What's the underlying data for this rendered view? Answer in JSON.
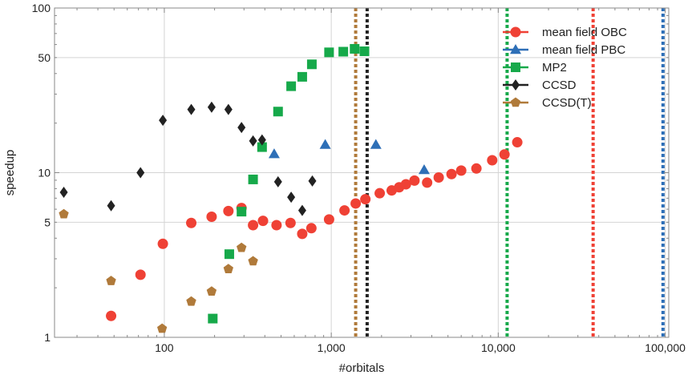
{
  "chart_data": {
    "type": "scatter",
    "xlabel": "#orbitals",
    "ylabel": "speedup",
    "xscale": "log",
    "yscale": "log",
    "xlim": [
      22,
      105000
    ],
    "ylim": [
      1,
      100
    ],
    "grid": true,
    "legend_position": "top-right",
    "x_ticks": [
      {
        "value": 100,
        "label": "100"
      },
      {
        "value": 1000,
        "label": "1,000"
      },
      {
        "value": 10000,
        "label": "10,000"
      },
      {
        "value": 100000,
        "label": "100,000"
      }
    ],
    "y_ticks": [
      {
        "value": 1,
        "label": "1"
      },
      {
        "value": 5,
        "label": "5"
      },
      {
        "value": 10,
        "label": "10"
      },
      {
        "value": 50,
        "label": "50"
      },
      {
        "value": 100,
        "label": "100"
      }
    ],
    "series": [
      {
        "name": "mean field OBC",
        "color": "#ef4135",
        "marker": "circle",
        "points": [
          [
            48,
            1.35
          ],
          [
            72,
            2.4
          ],
          [
            98,
            3.7
          ],
          [
            145,
            4.95
          ],
          [
            192,
            5.4
          ],
          [
            242,
            5.85
          ],
          [
            290,
            6.1
          ],
          [
            340,
            4.8
          ],
          [
            390,
            5.1
          ],
          [
            470,
            4.8
          ],
          [
            570,
            4.95
          ],
          [
            670,
            4.25
          ],
          [
            760,
            4.6
          ],
          [
            970,
            5.2
          ],
          [
            1200,
            5.9
          ],
          [
            1400,
            6.5
          ],
          [
            1600,
            6.9
          ],
          [
            1950,
            7.5
          ],
          [
            2300,
            7.8
          ],
          [
            2550,
            8.15
          ],
          [
            2800,
            8.5
          ],
          [
            3150,
            8.95
          ],
          [
            3750,
            8.7
          ],
          [
            4400,
            9.35
          ],
          [
            5250,
            9.8
          ],
          [
            6000,
            10.3
          ],
          [
            7400,
            10.6
          ],
          [
            9200,
            11.9
          ],
          [
            10900,
            12.9
          ],
          [
            13000,
            15.3
          ]
        ]
      },
      {
        "name": "mean field PBC",
        "color": "#2e6fb7",
        "marker": "triangle",
        "points": [
          [
            455,
            13.0
          ],
          [
            920,
            14.8
          ],
          [
            1850,
            14.8
          ],
          [
            3600,
            10.4
          ]
        ]
      },
      {
        "name": "MP2",
        "color": "#16a94a",
        "marker": "square",
        "points": [
          [
            195,
            1.3
          ],
          [
            245,
            3.2
          ],
          [
            290,
            5.8
          ],
          [
            340,
            9.1
          ],
          [
            385,
            14.3
          ],
          [
            480,
            23.5
          ],
          [
            575,
            33.5
          ],
          [
            670,
            38.2
          ],
          [
            765,
            45.5
          ],
          [
            970,
            53.8
          ],
          [
            1180,
            54.3
          ],
          [
            1380,
            56.5
          ],
          [
            1580,
            54.6
          ]
        ]
      },
      {
        "name": "CCSD",
        "color": "#222222",
        "marker": "diamond",
        "points": [
          [
            25,
            7.6
          ],
          [
            48,
            6.3
          ],
          [
            72,
            10.0
          ],
          [
            98,
            20.8
          ],
          [
            145,
            24.2
          ],
          [
            192,
            25.0
          ],
          [
            242,
            24.2
          ],
          [
            290,
            18.8
          ],
          [
            340,
            15.6
          ],
          [
            385,
            15.8
          ],
          [
            480,
            8.8
          ],
          [
            575,
            7.1
          ],
          [
            670,
            5.9
          ],
          [
            770,
            8.9
          ]
        ]
      },
      {
        "name": "CCSD(T)",
        "color": "#b07a3a",
        "marker": "pentagon",
        "points": [
          [
            25,
            5.6
          ],
          [
            48,
            2.2
          ],
          [
            97,
            1.13
          ],
          [
            145,
            1.65
          ],
          [
            192,
            1.9
          ],
          [
            242,
            2.6
          ],
          [
            290,
            3.5
          ],
          [
            340,
            2.9
          ]
        ]
      }
    ],
    "vertical_lines": [
      {
        "x": 1400,
        "color": "#b07a3a"
      },
      {
        "x": 1640,
        "color": "#222222"
      },
      {
        "x": 11300,
        "color": "#16a94a"
      },
      {
        "x": 37000,
        "color": "#ef4135"
      },
      {
        "x": 97000,
        "color": "#2e6fb7"
      }
    ]
  }
}
